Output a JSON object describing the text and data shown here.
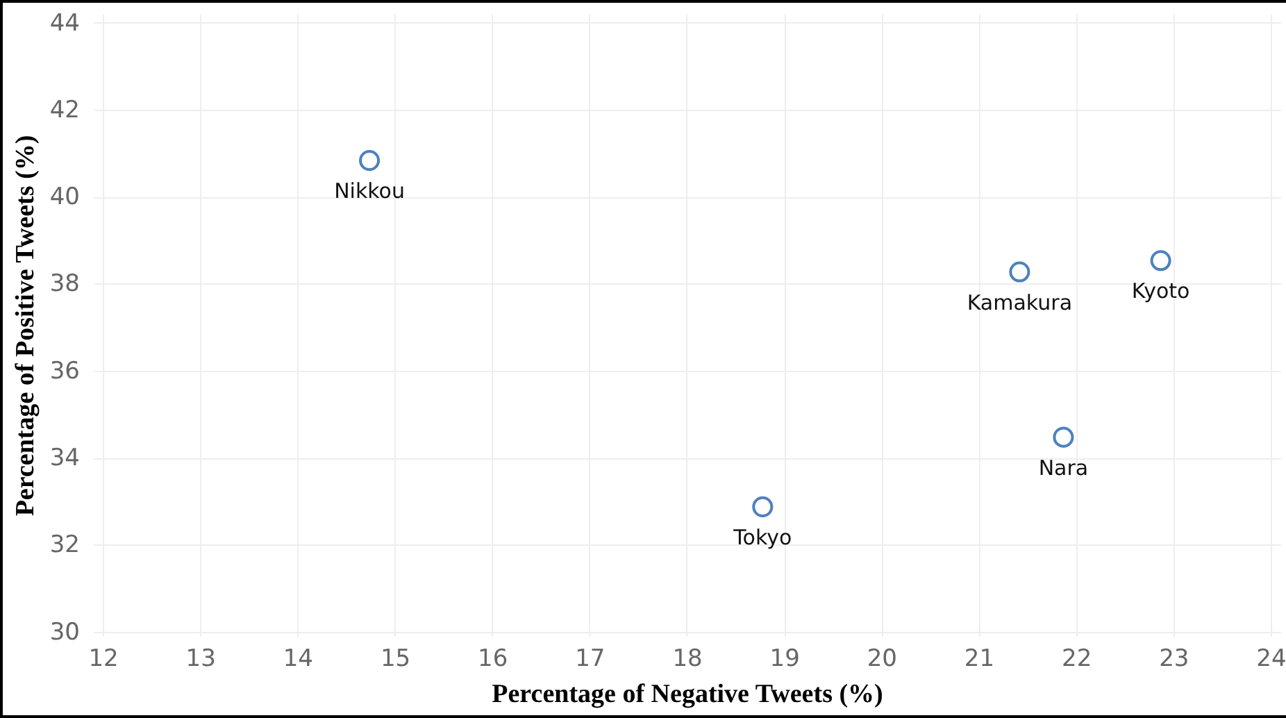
{
  "chart_data": {
    "type": "scatter",
    "xlabel": "Percentage of Negative Tweets  (%)",
    "ylabel": "Percentage of Positive Tweets   (%)",
    "x": [
      14.74,
      18.78,
      21.42,
      22.87,
      21.87
    ],
    "series": [
      {
        "color": "#4e81bd",
        "values": [
          40.83,
          32.87,
          38.27,
          38.53,
          34.47
        ]
      }
    ],
    "annotations": [
      {
        "text": "Nikkou",
        "x": 14.74,
        "y": 40.83
      },
      {
        "text": "Tokyo",
        "x": 18.78,
        "y": 32.87
      },
      {
        "text": "Kamakura",
        "x": 21.42,
        "y": 38.27
      },
      {
        "text": "Kyoto",
        "x": 22.87,
        "y": 38.53
      },
      {
        "text": "Nara",
        "x": 21.87,
        "y": 34.47
      }
    ],
    "xlim": [
      11.9,
      24.1
    ],
    "ylim": [
      29.9,
      44.2
    ],
    "xticks": [
      12,
      13,
      14,
      15,
      16,
      17,
      18,
      19,
      20,
      21,
      22,
      23,
      24
    ],
    "yticks": [
      30,
      32,
      34,
      36,
      38,
      40,
      42,
      44
    ],
    "grid": true,
    "marker": "circle"
  }
}
